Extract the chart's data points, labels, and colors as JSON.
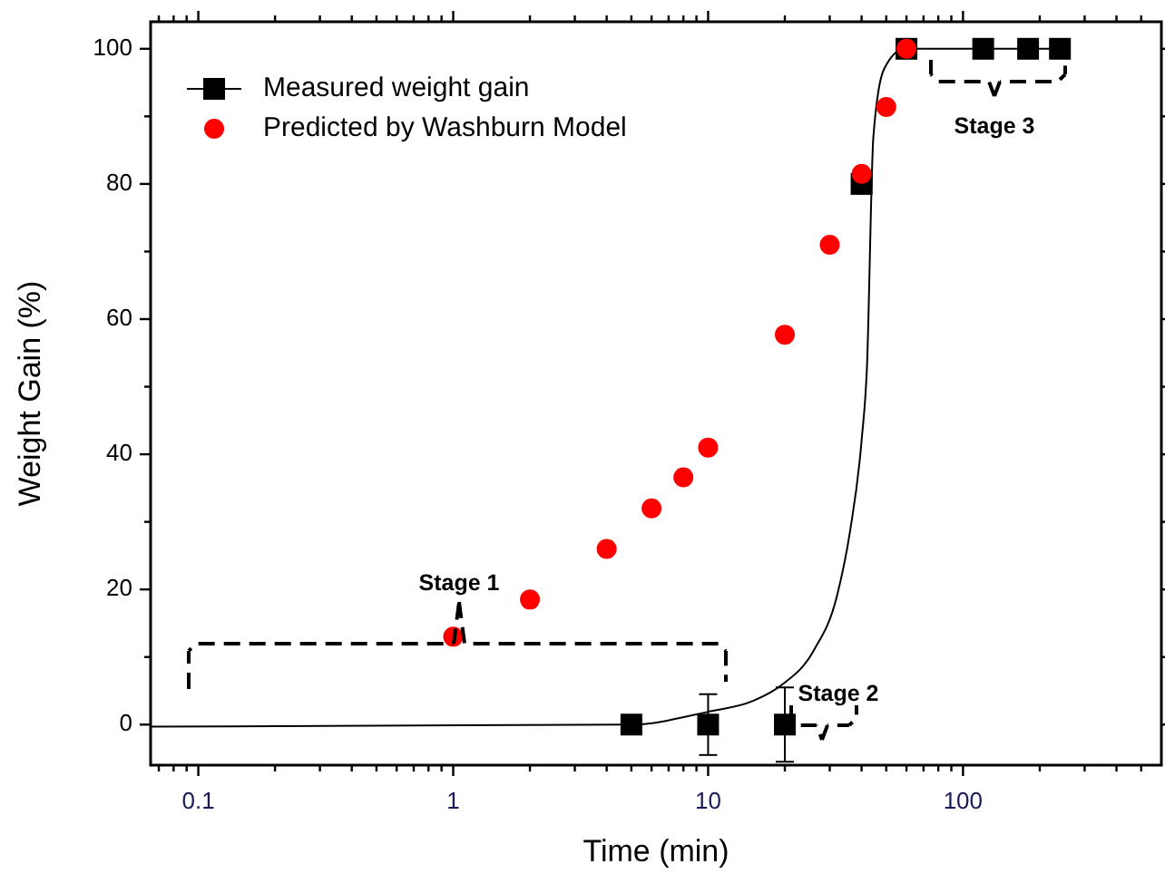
{
  "chart_data": {
    "type": "scatter",
    "xlabel": "Time (min)",
    "ylabel": "Weight Gain (%)",
    "log": "x",
    "xlim": [
      0.065,
      600
    ],
    "ylim": [
      -6,
      104
    ],
    "xticks": [
      {
        "value": 0.07,
        "label": null
      },
      {
        "value": 0.08,
        "label": null
      },
      {
        "value": 0.09,
        "label": null
      },
      0.1,
      {
        "value": 0.2,
        "label": null
      },
      {
        "value": 0.3,
        "label": null
      },
      {
        "value": 0.4,
        "label": null
      },
      {
        "value": 0.5,
        "label": null
      },
      {
        "value": 0.6,
        "label": null
      },
      {
        "value": 0.7,
        "label": null
      },
      {
        "value": 0.8,
        "label": null
      },
      {
        "value": 0.9,
        "label": null
      },
      1,
      {
        "value": 2,
        "label": null
      },
      {
        "value": 3,
        "label": null
      },
      {
        "value": 4,
        "label": null
      },
      {
        "value": 5,
        "label": null
      },
      {
        "value": 6,
        "label": null
      },
      {
        "value": 7,
        "label": null
      },
      {
        "value": 8,
        "label": null
      },
      {
        "value": 9,
        "label": null
      },
      10,
      {
        "value": 20,
        "label": null
      },
      {
        "value": 30,
        "label": null
      },
      {
        "value": 40,
        "label": null
      },
      {
        "value": 50,
        "label": null
      },
      {
        "value": 60,
        "label": null
      },
      {
        "value": 70,
        "label": null
      },
      {
        "value": 80,
        "label": null
      },
      {
        "value": 90,
        "label": null
      },
      100,
      {
        "value": 200,
        "label": null
      },
      {
        "value": 300,
        "label": null
      },
      {
        "value": 400,
        "label": null
      },
      {
        "value": 500,
        "label": null
      }
    ],
    "yticks": [
      0,
      {
        "value": 10,
        "label": null
      },
      20,
      {
        "value": 30,
        "label": null
      },
      40,
      {
        "value": 50,
        "label": null
      },
      60,
      {
        "value": 70,
        "label": null
      },
      80,
      {
        "value": 90,
        "label": null
      },
      100
    ],
    "grid": false,
    "legend": "top left",
    "series": [
      {
        "type": "line",
        "color": "#000000",
        "line_style": "solid",
        "marker": "none",
        "x": [
          0.065,
          5,
          10,
          15,
          19.5,
          26,
          32,
          36,
          40,
          42,
          44.5,
          49,
          59,
          240
        ],
        "values": [
          -0.3,
          0,
          1.9,
          3.5,
          5.9,
          11,
          19,
          28.5,
          42,
          53,
          87,
          97,
          100,
          100
        ]
      },
      {
        "name": "Measured weight gain",
        "marker": "square",
        "color": "#000000",
        "x": [
          5,
          10,
          20,
          40,
          60,
          120,
          180,
          240
        ],
        "values": [
          0,
          0,
          0,
          80,
          100,
          100,
          100,
          100
        ],
        "errors": [
          null,
          4.5,
          5.5,
          null,
          null,
          null,
          null,
          null
        ]
      },
      {
        "name": "Predicted by Washburn Model",
        "marker": "circle",
        "color": "#ff0000",
        "x": [
          1,
          2,
          4,
          6,
          8,
          10,
          20,
          30,
          40,
          50,
          60
        ],
        "values": [
          13,
          18.5,
          26,
          32,
          36.6,
          41,
          57.7,
          71,
          81.5,
          91.4,
          100
        ]
      }
    ],
    "annotations": [
      "Stage 1",
      "Stage 2",
      "Stage 3"
    ]
  }
}
